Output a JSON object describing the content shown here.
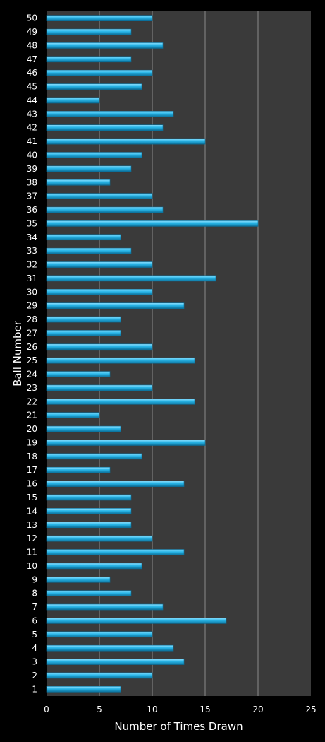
{
  "chart_data": {
    "type": "bar",
    "orientation": "horizontal",
    "title": "",
    "xlabel": "Number of Times Drawn",
    "ylabel": "Ball Number",
    "xlim": [
      0,
      25
    ],
    "xticks": [
      0,
      5,
      10,
      15,
      20,
      25
    ],
    "grid": true,
    "legend": "none",
    "colors": {
      "background": "#000000",
      "plot_area": "#3a3a3a",
      "bar": "#29b6e8",
      "bar_highlight": "#8fe0ff",
      "bar_shadow": "#0a6f99",
      "gridline": "#8a8a8a",
      "text": "#ffffff"
    },
    "categories": [
      "1",
      "2",
      "3",
      "4",
      "5",
      "6",
      "7",
      "8",
      "9",
      "10",
      "11",
      "12",
      "13",
      "14",
      "15",
      "16",
      "17",
      "18",
      "19",
      "20",
      "21",
      "22",
      "23",
      "24",
      "25",
      "26",
      "27",
      "28",
      "29",
      "30",
      "31",
      "32",
      "33",
      "34",
      "35",
      "36",
      "37",
      "38",
      "39",
      "40",
      "41",
      "42",
      "43",
      "44",
      "45",
      "46",
      "47",
      "48",
      "49",
      "50"
    ],
    "values": [
      7,
      10,
      13,
      12,
      10,
      17,
      11,
      8,
      6,
      9,
      13,
      10,
      8,
      8,
      8,
      13,
      6,
      9,
      15,
      7,
      5,
      14,
      10,
      6,
      14,
      10,
      7,
      7,
      13,
      10,
      16,
      10,
      8,
      7,
      20,
      11,
      10,
      6,
      8,
      9,
      15,
      11,
      12,
      5,
      9,
      10,
      8,
      11,
      8,
      10
    ]
  }
}
